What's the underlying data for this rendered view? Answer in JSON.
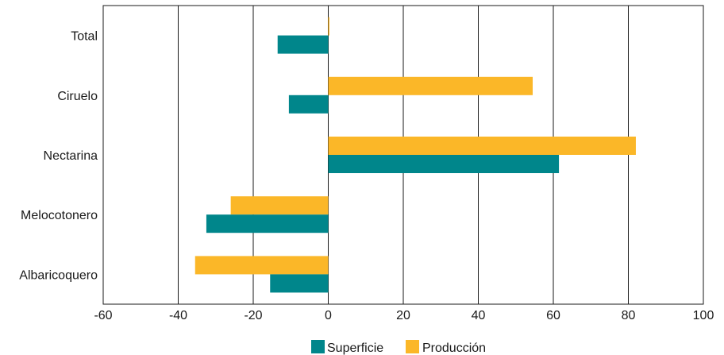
{
  "chart_data": {
    "type": "bar",
    "orientation": "horizontal",
    "categories": [
      "Total",
      "Ciruelo",
      "Nectarina",
      "Melocotonero",
      "Albaricoquero"
    ],
    "series": [
      {
        "name": "Superficie",
        "color": "#00868b",
        "values": [
          -13.5,
          -10.5,
          61.5,
          -32.5,
          -15.5
        ]
      },
      {
        "name": "Producción",
        "color": "#fbb728",
        "values": [
          0.3,
          54.5,
          82,
          -26,
          -35.5
        ]
      }
    ],
    "xlim": [
      -60,
      100
    ],
    "xticks": [
      -60,
      -40,
      -20,
      0,
      20,
      40,
      60,
      80,
      100
    ],
    "grid": "vertical",
    "legend_position": "bottom-center",
    "title": "",
    "xlabel": "",
    "ylabel": ""
  }
}
